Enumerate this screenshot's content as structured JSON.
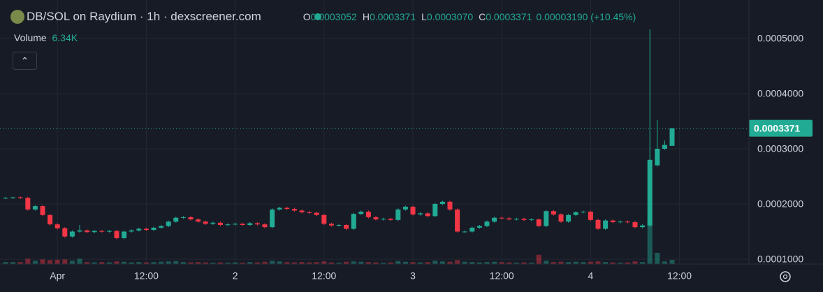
{
  "header": {
    "title": "DB/SOL on Raydium · 1h · dexscreener.com",
    "ohlc_labels": [
      "O",
      "H",
      "L",
      "C"
    ],
    "ohlc_value_labels": [
      "0.0003052",
      "0.0003371",
      "0.0003070",
      "0.0003371"
    ],
    "change_label": "0.00003190 (+10.45%)"
  },
  "chart_data": {
    "type": "candlestick",
    "categories": [
      null,
      null,
      null,
      null,
      null,
      null,
      null,
      "Apr",
      null,
      null,
      null,
      null,
      null,
      null,
      null,
      null,
      null,
      null,
      null,
      "12:00",
      null,
      null,
      null,
      null,
      null,
      null,
      null,
      null,
      null,
      null,
      null,
      "2",
      null,
      null,
      null,
      null,
      null,
      null,
      null,
      null,
      null,
      null,
      null,
      "12:00",
      null,
      null,
      null,
      null,
      null,
      null,
      null,
      null,
      null,
      null,
      null,
      "3",
      null,
      null,
      null,
      null,
      null,
      null,
      null,
      null,
      null,
      null,
      null,
      "12:00",
      null,
      null,
      null,
      null,
      null,
      null,
      null,
      null,
      null,
      null,
      null,
      "4",
      null,
      null,
      null,
      null,
      null,
      null,
      null,
      null,
      null,
      null,
      null,
      "12:00"
    ],
    "open": [
      0.000211,
      0.000211,
      0.000212,
      0.000211,
      0.00019,
      0.000196,
      0.00018,
      0.000163,
      0.000156,
      0.000141,
      0.00015,
      0.000152,
      0.000149,
      0.000151,
      0.00015,
      0.000151,
      0.000138,
      0.00015,
      0.000152,
      0.000155,
      0.000153,
      0.000157,
      0.00016,
      0.000168,
      0.000175,
      0.000176,
      0.000172,
      0.000168,
      0.000164,
      0.000166,
      0.000162,
      0.000163,
      0.000164,
      0.000162,
      0.000165,
      0.000163,
      0.000158,
      0.00019,
      0.000193,
      0.000191,
      0.000188,
      0.000185,
      0.000184,
      0.00018,
      0.000164,
      0.000161,
      0.000162,
      0.000155,
      0.000182,
      0.000186,
      0.000176,
      0.000172,
      0.000173,
      0.000171,
      0.00019,
      0.000195,
      0.000181,
      0.000183,
      0.000178,
      0.0002,
      0.000204,
      0.00019,
      0.00015,
      0.00015,
      0.000157,
      0.00016,
      0.000168,
      0.000175,
      0.000174,
      0.000172,
      0.000173,
      0.000171,
      0.000172,
      0.00016,
      0.000187,
      0.000181,
      0.000168,
      0.00018,
      0.000185,
      0.000186,
      0.000171,
      0.000155,
      0.00017,
      0.000167,
      0.000168,
      0.000167,
      0.000158,
      0.000161,
      0.00027,
      0.0003,
      0.0003052,
      null
    ],
    "high": [
      0.000213,
      0.000213,
      0.000214,
      0.000213,
      0.000198,
      0.000198,
      0.000182,
      0.000165,
      0.000158,
      0.000152,
      0.000162,
      0.000154,
      0.000153,
      0.000153,
      0.000153,
      0.000153,
      0.000152,
      0.000154,
      0.000157,
      0.000157,
      0.000159,
      0.000162,
      0.00017,
      0.000177,
      0.000178,
      0.000178,
      0.000174,
      0.00017,
      0.000168,
      0.000168,
      0.000165,
      0.000166,
      0.000166,
      0.000167,
      0.000167,
      0.000165,
      0.000192,
      0.000195,
      0.000195,
      0.000193,
      0.00019,
      0.000187,
      0.000186,
      0.000182,
      0.000166,
      0.000164,
      0.000164,
      0.000184,
      0.000188,
      0.000188,
      0.000178,
      0.000175,
      0.000175,
      0.000192,
      0.000197,
      0.000197,
      0.000185,
      0.000185,
      0.000202,
      0.000206,
      0.000206,
      0.000192,
      0.000152,
      0.000159,
      0.000162,
      0.00017,
      0.000177,
      0.000177,
      0.000176,
      0.000175,
      0.000175,
      0.000174,
      0.000174,
      0.000189,
      0.000189,
      0.000183,
      0.000182,
      0.000187,
      0.000188,
      0.000188,
      0.000173,
      0.000172,
      0.000172,
      0.00017,
      0.00017,
      0.000169,
      0.000163,
      0.0005165,
      0.000352,
      0.000315,
      0.0003371,
      null
    ],
    "low": [
      0.000209,
      0.000209,
      0.000209,
      0.000188,
      0.000188,
      0.000178,
      0.000161,
      0.000154,
      0.000139,
      0.000139,
      0.000148,
      0.000147,
      0.000147,
      0.000148,
      0.000148,
      0.000136,
      0.000136,
      0.000148,
      0.00015,
      0.000151,
      0.000151,
      0.000155,
      0.000158,
      0.000166,
      0.000173,
      0.00017,
      0.000166,
      0.000162,
      0.000162,
      0.00016,
      0.00016,
      0.000161,
      0.00016,
      0.00016,
      0.000161,
      0.000156,
      0.000156,
      0.000188,
      0.000189,
      0.000186,
      0.000183,
      0.000182,
      0.000178,
      0.000162,
      0.000159,
      0.000159,
      0.000153,
      0.000153,
      0.00018,
      0.000174,
      0.00017,
      0.00017,
      0.000169,
      0.000169,
      0.000188,
      0.000179,
      0.000179,
      0.000176,
      0.000176,
      0.000198,
      0.000188,
      0.000148,
      0.000148,
      0.000148,
      0.000155,
      0.000158,
      0.000166,
      0.000172,
      0.00017,
      0.00017,
      0.000169,
      0.000169,
      0.000158,
      0.000158,
      0.000179,
      0.000166,
      0.000166,
      0.000178,
      0.000183,
      0.000169,
      0.000153,
      0.000153,
      0.000165,
      0.000165,
      0.000165,
      0.000156,
      0.000156,
      0.000158,
      0.000268,
      0.000298,
      0.000307,
      null
    ],
    "close": [
      0.000211,
      0.000212,
      0.000211,
      0.00019,
      0.000196,
      0.00018,
      0.000163,
      0.000156,
      0.000141,
      0.00015,
      0.000152,
      0.000149,
      0.000151,
      0.00015,
      0.000151,
      0.000138,
      0.00015,
      0.000152,
      0.000155,
      0.000153,
      0.000157,
      0.00016,
      0.000168,
      0.000175,
      0.000176,
      0.000172,
      0.000168,
      0.000164,
      0.000166,
      0.000162,
      0.000163,
      0.000164,
      0.000162,
      0.000165,
      0.000163,
      0.000158,
      0.00019,
      0.000193,
      0.000191,
      0.000188,
      0.000185,
      0.000184,
      0.00018,
      0.000164,
      0.000161,
      0.000162,
      0.000155,
      0.000182,
      0.000186,
      0.000176,
      0.000172,
      0.000173,
      0.000171,
      0.00019,
      0.000195,
      0.000181,
      0.000183,
      0.000178,
      0.0002,
      0.000204,
      0.00019,
      0.00015,
      0.00015,
      0.000157,
      0.00016,
      0.000168,
      0.000175,
      0.000174,
      0.000172,
      0.000173,
      0.000171,
      0.000172,
      0.00016,
      0.000187,
      0.000181,
      0.000168,
      0.00018,
      0.000185,
      0.000186,
      0.000171,
      0.000155,
      0.00017,
      0.000167,
      0.000168,
      0.000167,
      0.000158,
      0.000161,
      0.00028,
      0.0003,
      0.000307,
      0.0003371,
      null
    ],
    "volume": {
      "name": "Volume",
      "current_label": "6.34K",
      "vlim": [
        0,
        400000
      ],
      "values": [
        3000,
        3000,
        3000,
        8000,
        5000,
        7000,
        6000,
        6500,
        7000,
        5000,
        8000,
        3000,
        2500,
        3000,
        2500,
        4000,
        3500,
        2500,
        3000,
        2500,
        3000,
        3500,
        4000,
        4500,
        3000,
        2500,
        3000,
        2500,
        2000,
        2500,
        2000,
        2500,
        2000,
        3000,
        2500,
        3500,
        5000,
        4000,
        3000,
        2500,
        3000,
        2500,
        3000,
        4000,
        2500,
        2000,
        3500,
        4000,
        3500,
        3000,
        2500,
        2000,
        2500,
        4500,
        3500,
        3000,
        2500,
        3000,
        5000,
        4000,
        3500,
        6000,
        3500,
        3000,
        2500,
        3000,
        3500,
        3000,
        2500,
        2000,
        2500,
        2000,
        14000,
        5000,
        3000,
        3500,
        3000,
        3500,
        3000,
        3500,
        4000,
        3000,
        2500,
        2000,
        2500,
        4000,
        3000,
        66000,
        17000,
        4000,
        6340,
        null
      ]
    },
    "ylim": [
      9.11e-05,
      0.0005696
    ],
    "yticks": [
      {
        "value": 0.0001,
        "label": "0.0001000"
      },
      {
        "value": 0.0002,
        "label": "0.0002000"
      },
      {
        "value": 0.0003,
        "label": "0.0003000"
      },
      {
        "value": 0.0004,
        "label": "0.0004000"
      },
      {
        "value": 0.0005,
        "label": "0.0005000"
      }
    ],
    "last_price_label": "0.0003371",
    "grid": true,
    "up_color": "#22ab94",
    "down_color": "#f23645"
  }
}
